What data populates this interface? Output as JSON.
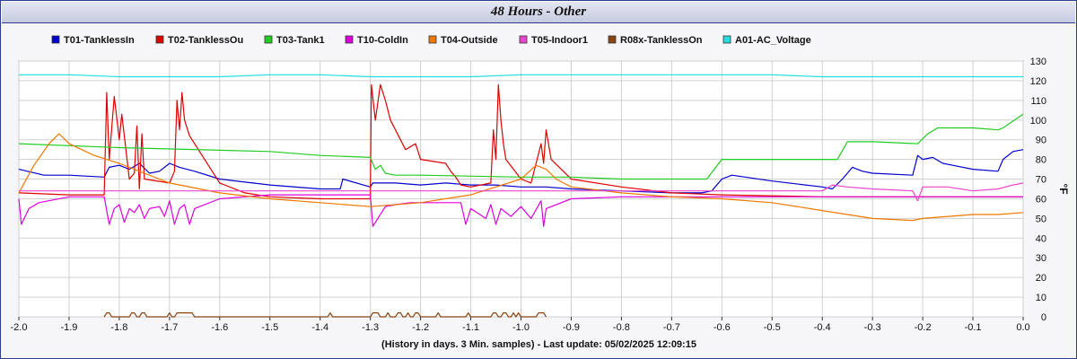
{
  "window": {
    "title": "48 Hours - Other"
  },
  "chart_data": {
    "type": "line",
    "title": "48 Hours - Other",
    "xlabel": "(History in days. 3 Min. samples) - Last update: 05/02/2025 12:09:15",
    "ylabel": "°F",
    "xlim": [
      -2.0,
      0.0
    ],
    "ylim": [
      0,
      130
    ],
    "x_ticks": [
      -2.0,
      -1.9,
      -1.8,
      -1.7,
      -1.6,
      -1.5,
      -1.4,
      -1.3,
      -1.2,
      -1.1,
      -1.0,
      -0.9,
      -0.8,
      -0.7,
      -0.6,
      -0.5,
      -0.4,
      -0.3,
      -0.2,
      -0.1,
      0.0
    ],
    "x_tick_labels": [
      "-2.0",
      "-1.9",
      "-1.8",
      "-1.7",
      "-1.6",
      "-1.5",
      "-1.4",
      "-1.3",
      "-1.2",
      "-1.1",
      "-1.0",
      "-0.9",
      "-0.8",
      "-0.7",
      "-0.6",
      "-0.5",
      "-0.4",
      "-0.3",
      "-0.2",
      "-0.1",
      "0.0"
    ],
    "y_ticks": [
      0,
      10,
      20,
      30,
      40,
      50,
      60,
      70,
      80,
      90,
      100,
      110,
      120,
      130
    ],
    "y_tick_labels": [
      "0",
      "10",
      "20",
      "30",
      "40",
      "50",
      "60",
      "70",
      "80",
      "90",
      "100",
      "110",
      "120",
      "130"
    ],
    "grid": true,
    "legend_position": "top",
    "series": [
      {
        "name": "T01-TanklessIn",
        "color": "#0000cc",
        "x": [
          -2.0,
          -1.95,
          -1.9,
          -1.83,
          -1.82,
          -1.8,
          -1.78,
          -1.76,
          -1.74,
          -1.72,
          -1.7,
          -1.68,
          -1.65,
          -1.6,
          -1.5,
          -1.4,
          -1.36,
          -1.355,
          -1.3,
          -1.295,
          -1.28,
          -1.25,
          -1.2,
          -1.15,
          -1.1,
          -1.05,
          -1.0,
          -0.95,
          -0.9,
          -0.8,
          -0.7,
          -0.64,
          -0.62,
          -0.6,
          -0.58,
          -0.5,
          -0.4,
          -0.38,
          -0.36,
          -0.34,
          -0.32,
          -0.3,
          -0.22,
          -0.21,
          -0.2,
          -0.18,
          -0.16,
          -0.14,
          -0.1,
          -0.05,
          -0.04,
          -0.02,
          0.0
        ],
        "y": [
          75,
          72,
          72,
          71,
          76,
          77,
          75,
          78,
          73,
          74,
          78,
          76,
          74,
          70,
          67,
          65,
          65,
          70,
          66,
          68,
          68,
          68,
          67,
          68,
          67,
          67,
          66,
          66,
          65,
          64,
          63,
          63,
          64,
          70,
          72,
          69,
          66,
          65,
          70,
          76,
          74,
          73,
          72,
          82,
          80,
          81,
          78,
          77,
          75,
          74,
          80,
          84,
          85
        ]
      },
      {
        "name": "T02-TanklessOu",
        "color": "#e00000",
        "x": [
          -2.0,
          -1.9,
          -1.83,
          -1.825,
          -1.82,
          -1.81,
          -1.8,
          -1.795,
          -1.78,
          -1.77,
          -1.765,
          -1.76,
          -1.755,
          -1.75,
          -1.7,
          -1.69,
          -1.685,
          -1.68,
          -1.675,
          -1.67,
          -1.66,
          -1.6,
          -1.55,
          -1.5,
          -1.4,
          -1.3,
          -1.298,
          -1.29,
          -1.28,
          -1.27,
          -1.26,
          -1.25,
          -1.23,
          -1.21,
          -1.2,
          -1.15,
          -1.14,
          -1.13,
          -1.12,
          -1.1,
          -1.06,
          -1.055,
          -1.05,
          -1.045,
          -1.04,
          -1.035,
          -1.03,
          -1.0,
          -0.98,
          -0.96,
          -0.955,
          -0.95,
          -0.94,
          -0.9,
          -0.8,
          -0.7,
          -0.6,
          -0.4,
          -0.2,
          -0.1,
          0.0
        ],
        "y": [
          63,
          62,
          62,
          114,
          80,
          112,
          90,
          103,
          70,
          73,
          97,
          65,
          93,
          70,
          68,
          74,
          110,
          95,
          114,
          100,
          92,
          68,
          63,
          61,
          60,
          60,
          118,
          100,
          118,
          110,
          100,
          95,
          85,
          88,
          80,
          78,
          74,
          71,
          67,
          66,
          68,
          95,
          80,
          118,
          100,
          88,
          80,
          70,
          68,
          88,
          78,
          95,
          80,
          70,
          66,
          63,
          62,
          61,
          61,
          61,
          61
        ]
      },
      {
        "name": "T03-Tank1",
        "color": "#22cc22",
        "x": [
          -2.0,
          -1.8,
          -1.5,
          -1.4,
          -1.3,
          -1.29,
          -1.28,
          -1.27,
          -1.25,
          -1.2,
          -1.0,
          -0.9,
          -0.8,
          -0.7,
          -0.63,
          -0.6,
          -0.5,
          -0.4,
          -0.37,
          -0.35,
          -0.3,
          -0.21,
          -0.19,
          -0.17,
          -0.1,
          -0.05,
          -0.04,
          0.0
        ],
        "y": [
          88,
          86,
          84,
          82,
          81,
          75,
          77,
          73,
          72,
          72,
          71,
          71,
          70,
          70,
          70,
          80,
          80,
          80,
          80,
          89,
          89,
          88,
          93,
          96,
          96,
          95,
          96,
          103
        ]
      },
      {
        "name": "T10-ColdIn",
        "color": "#dd00dd",
        "x": [
          -2.0,
          -1.995,
          -1.98,
          -1.96,
          -1.9,
          -1.83,
          -1.82,
          -1.81,
          -1.8,
          -1.79,
          -1.78,
          -1.77,
          -1.76,
          -1.75,
          -1.74,
          -1.72,
          -1.71,
          -1.7,
          -1.69,
          -1.68,
          -1.67,
          -1.66,
          -1.65,
          -1.6,
          -1.5,
          -1.4,
          -1.3,
          -1.295,
          -1.285,
          -1.27,
          -1.25,
          -1.22,
          -1.2,
          -1.15,
          -1.12,
          -1.11,
          -1.1,
          -1.07,
          -1.06,
          -1.05,
          -1.04,
          -1.02,
          -1.0,
          -0.98,
          -0.96,
          -0.955,
          -0.95,
          -0.9,
          -0.8,
          -0.6,
          -0.4,
          -0.2,
          0.0
        ],
        "y": [
          60,
          47,
          55,
          58,
          61,
          61,
          47,
          55,
          57,
          48,
          55,
          53,
          57,
          50,
          55,
          56,
          51,
          59,
          47,
          55,
          57,
          47,
          55,
          60,
          62,
          62,
          62,
          46,
          50,
          56,
          57,
          58,
          58,
          58,
          58,
          47,
          55,
          50,
          57,
          47,
          55,
          51,
          56,
          50,
          59,
          46,
          55,
          60,
          61,
          61,
          61,
          61,
          61
        ]
      },
      {
        "name": "T04-Outside",
        "color": "#ee7700",
        "x": [
          -2.0,
          -1.97,
          -1.94,
          -1.92,
          -1.9,
          -1.85,
          -1.8,
          -1.75,
          -1.7,
          -1.6,
          -1.5,
          -1.4,
          -1.3,
          -1.2,
          -1.1,
          -1.0,
          -0.97,
          -0.95,
          -0.93,
          -0.9,
          -0.8,
          -0.7,
          -0.6,
          -0.5,
          -0.4,
          -0.3,
          -0.22,
          -0.2,
          -0.1,
          -0.05,
          0.0
        ],
        "y": [
          63,
          77,
          88,
          93,
          88,
          82,
          78,
          73,
          68,
          63,
          60,
          58,
          56,
          58,
          62,
          70,
          77,
          75,
          70,
          66,
          63,
          61,
          60,
          58,
          54,
          50,
          49,
          50,
          52,
          52,
          53
        ]
      },
      {
        "name": "T05-Indoor1",
        "color": "#ee44cc",
        "x": [
          -2.0,
          -1.9,
          -1.8,
          -1.7,
          -1.6,
          -1.5,
          -1.4,
          -1.3,
          -1.25,
          -1.2,
          -1.1,
          -1.0,
          -0.9,
          -0.8,
          -0.7,
          -0.6,
          -0.5,
          -0.4,
          -0.38,
          -0.35,
          -0.3,
          -0.22,
          -0.21,
          -0.2,
          -0.18,
          -0.15,
          -0.1,
          -0.05,
          -0.02,
          0.0
        ],
        "y": [
          64,
          64,
          64,
          64,
          64,
          64,
          64,
          64,
          64,
          64,
          64,
          64,
          64,
          64,
          64,
          64,
          64,
          64,
          67,
          66,
          65,
          64,
          59,
          66,
          66,
          66,
          64,
          65,
          67,
          68
        ]
      },
      {
        "name": "R08x-TanklessOn",
        "color": "#884411",
        "x": [
          -1.83,
          -1.825,
          -1.82,
          -1.815,
          -1.78,
          -1.775,
          -1.77,
          -1.765,
          -1.76,
          -1.755,
          -1.75,
          -1.745,
          -1.705,
          -1.7,
          -1.695,
          -1.69,
          -1.685,
          -1.68,
          -1.675,
          -1.67,
          -1.665,
          -1.66,
          -1.655,
          -1.65,
          -1.385,
          -1.38,
          -1.375,
          -1.3,
          -1.295,
          -1.29,
          -1.285,
          -1.28,
          -1.27,
          -1.265,
          -1.26,
          -1.25,
          -1.245,
          -1.24,
          -1.235,
          -1.23,
          -1.225,
          -1.22,
          -1.215,
          -1.21,
          -1.205,
          -1.2,
          -1.17,
          -1.165,
          -1.16,
          -1.11,
          -1.105,
          -1.1,
          -1.06,
          -1.055,
          -1.05,
          -1.045,
          -1.04,
          -1.035,
          -1.03,
          -1.025,
          -1.02,
          -1.015,
          -1.01,
          -1.005,
          -1.0,
          -0.97,
          -0.965,
          -0.96,
          -0.955,
          -0.95
        ],
        "y": [
          0,
          2,
          2,
          0,
          0,
          2,
          2,
          0,
          0,
          2,
          2,
          0,
          0,
          2,
          0,
          0,
          2,
          2,
          2,
          2,
          2,
          2,
          2,
          0,
          0,
          2,
          0,
          0,
          2,
          2,
          2,
          0,
          0,
          2,
          0,
          0,
          2,
          2,
          0,
          0,
          2,
          0,
          0,
          2,
          2,
          0,
          0,
          2,
          0,
          0,
          2,
          0,
          0,
          2,
          2,
          0,
          0,
          2,
          2,
          0,
          0,
          2,
          0,
          2,
          0,
          0,
          2,
          2,
          2,
          0
        ]
      },
      {
        "name": "A01-AC_Voltage",
        "color": "#22dddd",
        "x": [
          -2.0,
          -1.9,
          -1.8,
          -1.7,
          -1.6,
          -1.5,
          -1.4,
          -1.3,
          -1.2,
          -1.1,
          -1.0,
          -0.9,
          -0.8,
          -0.7,
          -0.6,
          -0.5,
          -0.4,
          -0.3,
          -0.2,
          -0.1,
          0.0
        ],
        "y": [
          123,
          123,
          122,
          122,
          122,
          123,
          123,
          122,
          122,
          122,
          123,
          123,
          123,
          123,
          123,
          123,
          122,
          122,
          122,
          122,
          122
        ]
      }
    ]
  }
}
